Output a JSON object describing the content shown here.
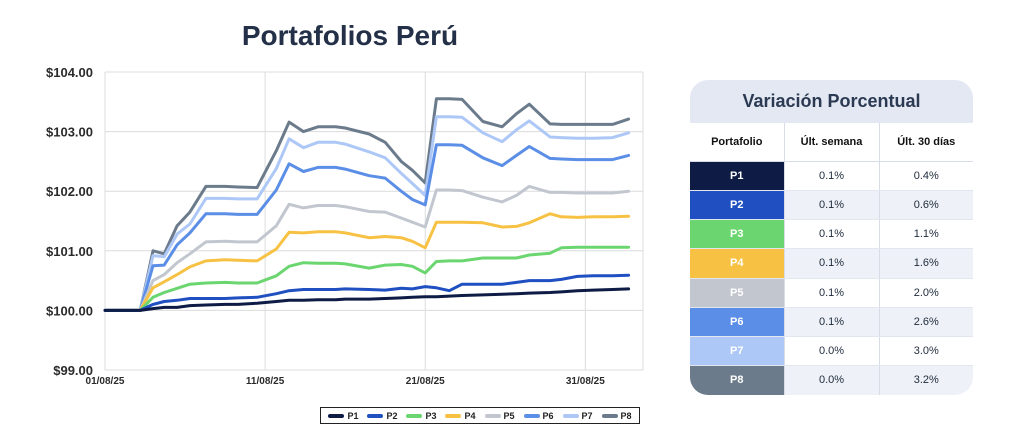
{
  "chart_data": {
    "type": "line",
    "title": "Portafolios Perú",
    "y_tick_labels": [
      "$104.00",
      "$103.00",
      "$102.00",
      "$101.00",
      "$100.00",
      "$99.00"
    ],
    "y_ticks": [
      104,
      103,
      102,
      101,
      100,
      99
    ],
    "ylim": [
      99,
      104
    ],
    "x_tick_labels": [
      "01/08/25",
      "11/08/25",
      "21/08/25",
      "31/08/25"
    ],
    "x_tick_positions": [
      0,
      10,
      20,
      30
    ],
    "xlim": [
      0,
      33.6
    ],
    "grid": true,
    "legend_position": "bottom",
    "x": [
      0,
      1.5,
      2.2,
      3.0,
      3.7,
      4.5,
      5.3,
      6.3,
      7.5,
      8.3,
      9.5,
      10.7,
      11.5,
      12.4,
      13.3,
      14.4,
      15.0,
      16.5,
      17.5,
      18.5,
      19.2,
      20.0,
      20.7,
      21.5,
      22.3,
      23.6,
      24.8,
      25.7,
      26.5,
      27.8,
      28.5,
      29.5,
      30.5,
      31.7,
      32.7
    ],
    "series": [
      {
        "name": "P1",
        "color": "#0d1b45",
        "values": [
          100.0,
          100.0,
          100.0,
          100.03,
          100.05,
          100.05,
          100.08,
          100.09,
          100.1,
          100.1,
          100.12,
          100.15,
          100.17,
          100.17,
          100.18,
          100.18,
          100.19,
          100.19,
          100.2,
          100.21,
          100.22,
          100.23,
          100.23,
          100.24,
          100.25,
          100.26,
          100.27,
          100.28,
          100.29,
          100.3,
          100.31,
          100.33,
          100.34,
          100.35,
          100.36
        ]
      },
      {
        "name": "P2",
        "color": "#1f4fc0",
        "values": [
          100.0,
          100.0,
          100.0,
          100.1,
          100.15,
          100.17,
          100.2,
          100.2,
          100.2,
          100.21,
          100.22,
          100.28,
          100.33,
          100.35,
          100.35,
          100.35,
          100.36,
          100.35,
          100.34,
          100.37,
          100.36,
          100.4,
          100.38,
          100.33,
          100.44,
          100.44,
          100.44,
          100.47,
          100.5,
          100.5,
          100.52,
          100.57,
          100.58,
          100.58,
          100.59
        ]
      },
      {
        "name": "P3",
        "color": "#6bd66f",
        "values": [
          100.0,
          100.0,
          100.0,
          100.22,
          100.3,
          100.37,
          100.44,
          100.46,
          100.47,
          100.46,
          100.46,
          100.58,
          100.74,
          100.8,
          100.79,
          100.79,
          100.78,
          100.71,
          100.76,
          100.77,
          100.74,
          100.63,
          100.82,
          100.83,
          100.83,
          100.88,
          100.88,
          100.88,
          100.93,
          100.96,
          101.05,
          101.06,
          101.06,
          101.06,
          101.06
        ]
      },
      {
        "name": "P4",
        "color": "#f7c244",
        "values": [
          100.0,
          100.0,
          100.0,
          100.38,
          100.48,
          100.6,
          100.73,
          100.83,
          100.85,
          100.84,
          100.83,
          101.03,
          101.31,
          101.3,
          101.32,
          101.32,
          101.3,
          101.22,
          101.24,
          101.22,
          101.16,
          101.05,
          101.48,
          101.48,
          101.48,
          101.47,
          101.4,
          101.41,
          101.47,
          101.62,
          101.57,
          101.56,
          101.57,
          101.57,
          101.58
        ]
      },
      {
        "name": "P5",
        "color": "#c2c7cf",
        "values": [
          100.0,
          100.0,
          100.0,
          100.5,
          100.6,
          100.8,
          100.95,
          101.15,
          101.16,
          101.15,
          101.15,
          101.42,
          101.78,
          101.72,
          101.76,
          101.76,
          101.74,
          101.66,
          101.65,
          101.55,
          101.48,
          101.4,
          102.02,
          102.02,
          102.01,
          101.9,
          101.82,
          101.93,
          102.08,
          101.98,
          101.98,
          101.97,
          101.97,
          101.97,
          102.0
        ]
      },
      {
        "name": "P6",
        "color": "#5b8ee6",
        "values": [
          100.0,
          100.0,
          100.0,
          100.75,
          100.76,
          101.1,
          101.3,
          101.62,
          101.62,
          101.61,
          101.61,
          102.02,
          102.46,
          102.33,
          102.4,
          102.4,
          102.37,
          102.26,
          102.22,
          102.0,
          101.86,
          101.77,
          102.78,
          102.78,
          102.77,
          102.56,
          102.43,
          102.6,
          102.75,
          102.55,
          102.54,
          102.53,
          102.53,
          102.53,
          102.6
        ]
      },
      {
        "name": "P7",
        "color": "#adc8f7",
        "values": [
          100.0,
          100.0,
          100.0,
          100.92,
          100.9,
          101.28,
          101.45,
          101.88,
          101.88,
          101.87,
          101.87,
          102.38,
          102.88,
          102.73,
          102.82,
          102.82,
          102.79,
          102.66,
          102.56,
          102.3,
          102.13,
          101.93,
          103.25,
          103.25,
          103.24,
          102.98,
          102.83,
          103.03,
          103.18,
          102.91,
          102.9,
          102.89,
          102.89,
          102.9,
          102.98
        ]
      },
      {
        "name": "P8",
        "color": "#6b7b8b",
        "values": [
          100.0,
          100.0,
          100.0,
          101.0,
          100.95,
          101.42,
          101.65,
          102.08,
          102.08,
          102.07,
          102.06,
          102.68,
          103.16,
          103.0,
          103.08,
          103.08,
          103.06,
          102.96,
          102.82,
          102.5,
          102.35,
          102.14,
          103.55,
          103.55,
          103.54,
          103.17,
          103.08,
          103.3,
          103.46,
          103.13,
          103.12,
          103.12,
          103.12,
          103.12,
          103.21
        ]
      }
    ]
  },
  "table": {
    "title": "Variación Porcentual",
    "headers": [
      "Portafolio",
      "Últ. semana",
      "Últ. 30 días"
    ],
    "rows": [
      {
        "portfolio": "P1",
        "week": "0.1%",
        "month": "0.4%",
        "color": "#0d1b45"
      },
      {
        "portfolio": "P2",
        "week": "0.1%",
        "month": "0.6%",
        "color": "#1f4fc0"
      },
      {
        "portfolio": "P3",
        "week": "0.1%",
        "month": "1.1%",
        "color": "#6bd66f"
      },
      {
        "portfolio": "P4",
        "week": "0.1%",
        "month": "1.6%",
        "color": "#f7c244"
      },
      {
        "portfolio": "P5",
        "week": "0.1%",
        "month": "2.0%",
        "color": "#c2c7cf"
      },
      {
        "portfolio": "P6",
        "week": "0.1%",
        "month": "2.6%",
        "color": "#5b8ee6"
      },
      {
        "portfolio": "P7",
        "week": "0.0%",
        "month": "3.0%",
        "color": "#adc8f7"
      },
      {
        "portfolio": "P8",
        "week": "0.0%",
        "month": "3.2%",
        "color": "#6b7b8b"
      }
    ]
  }
}
